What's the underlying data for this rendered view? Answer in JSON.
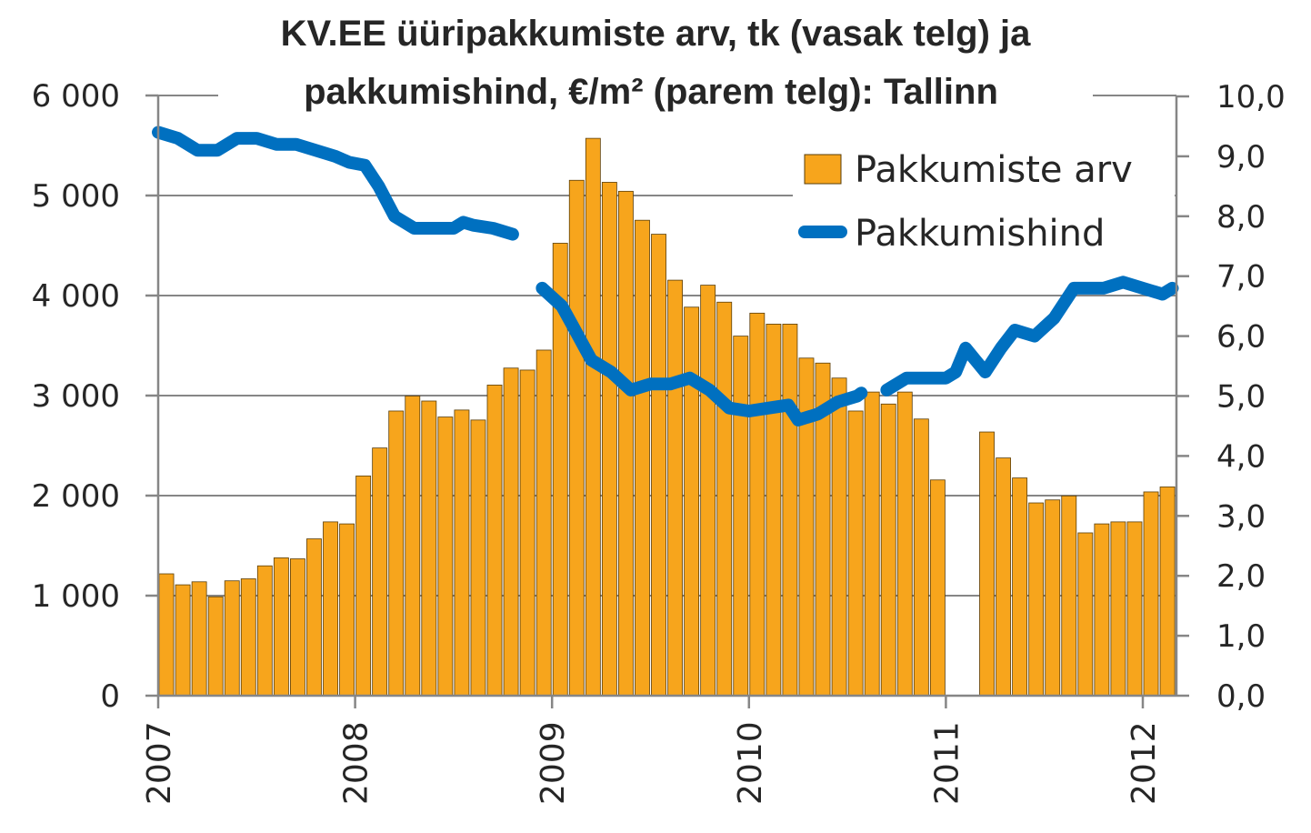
{
  "chart_data": {
    "type": "bar+line",
    "title_lines": [
      "KV.EE üüripakkumiste arv, tk (vasak telg) ja",
      "pakkumishind, €/m² (parem telg): Tallinn"
    ],
    "x_ticks": [
      "2007",
      "2008",
      "2009",
      "2010",
      "2011",
      "2012"
    ],
    "left_axis": {
      "min": 0,
      "max": 6000,
      "ticks": [
        "0",
        "1 000",
        "2 000",
        "3 000",
        "4 000",
        "5 000",
        "6 000"
      ]
    },
    "right_axis": {
      "min": 0,
      "max": 10,
      "ticks": [
        "0,0",
        "1,0",
        "2,0",
        "3,0",
        "4,0",
        "5,0",
        "6,0",
        "7,0",
        "8,0",
        "9,0",
        "10,0"
      ]
    },
    "legend": {
      "bar_label": "Pakkumiste arv",
      "line_label": "Pakkumishind"
    },
    "colors": {
      "bar": "#F7A51C",
      "line": "#0070C0",
      "grid": "#868686",
      "text": "#262626"
    },
    "series": [
      {
        "name": "Pakkumiste arv",
        "axis": "left",
        "type": "bar",
        "values": [
          1220,
          1110,
          1140,
          990,
          1150,
          1170,
          1300,
          1380,
          1370,
          1570,
          1740,
          1720,
          2200,
          2480,
          2850,
          3000,
          2950,
          2790,
          2860,
          2760,
          3110,
          3280,
          3260,
          3460,
          4530,
          5160,
          5580,
          5140,
          5050,
          4760,
          4620,
          4160,
          3890,
          4110,
          3940,
          3600,
          3830,
          3720,
          3720,
          3380,
          3330,
          3180,
          2850,
          3040,
          2920,
          3040,
          2770,
          2160,
          null,
          null,
          2640,
          2380,
          2180,
          1930,
          1960,
          2000,
          1630,
          1720,
          1740,
          1740,
          2040,
          2090
        ]
      },
      {
        "name": "Pakkumishind",
        "axis": "right",
        "type": "line",
        "segments": [
          [
            [
              2007.0,
              9.4
            ],
            [
              2007.1,
              9.3
            ],
            [
              2007.2,
              9.1
            ],
            [
              2007.3,
              9.1
            ],
            [
              2007.4,
              9.3
            ],
            [
              2007.5,
              9.3
            ],
            [
              2007.6,
              9.2
            ],
            [
              2007.7,
              9.2
            ],
            [
              2007.8,
              9.1
            ],
            [
              2007.9,
              9.0
            ],
            [
              2007.97,
              8.9
            ],
            [
              2008.05,
              8.85
            ],
            [
              2008.12,
              8.5
            ],
            [
              2008.2,
              8.0
            ],
            [
              2008.3,
              7.8
            ],
            [
              2008.4,
              7.8
            ],
            [
              2008.5,
              7.8
            ],
            [
              2008.55,
              7.9
            ],
            [
              2008.6,
              7.85
            ],
            [
              2008.7,
              7.8
            ],
            [
              2008.8,
              7.7
            ]
          ],
          [
            [
              2008.95,
              6.8
            ],
            [
              2009.05,
              6.5
            ],
            [
              2009.1,
              6.2
            ],
            [
              2009.2,
              5.6
            ],
            [
              2009.3,
              5.4
            ],
            [
              2009.4,
              5.1
            ],
            [
              2009.5,
              5.2
            ],
            [
              2009.6,
              5.2
            ],
            [
              2009.7,
              5.3
            ],
            [
              2009.8,
              5.1
            ],
            [
              2009.9,
              4.8
            ],
            [
              2010.0,
              4.75
            ],
            [
              2010.1,
              4.8
            ],
            [
              2010.2,
              4.85
            ],
            [
              2010.25,
              4.6
            ],
            [
              2010.35,
              4.7
            ],
            [
              2010.45,
              4.9
            ],
            [
              2010.55,
              5.0
            ],
            [
              2010.57,
              5.05
            ]
          ],
          [
            [
              2010.7,
              5.1
            ],
            [
              2010.8,
              5.3
            ],
            [
              2010.9,
              5.3
            ],
            [
              2011.0,
              5.3
            ],
            [
              2011.05,
              5.4
            ],
            [
              2011.1,
              5.8
            ],
            [
              2011.15,
              5.6
            ],
            [
              2011.2,
              5.4
            ],
            [
              2011.28,
              5.8
            ],
            [
              2011.35,
              6.1
            ],
            [
              2011.45,
              6.0
            ],
            [
              2011.55,
              6.3
            ],
            [
              2011.65,
              6.8
            ],
            [
              2011.75,
              6.8
            ],
            [
              2011.8,
              6.8
            ],
            [
              2011.9,
              6.9
            ],
            [
              2012.0,
              6.8
            ],
            [
              2012.1,
              6.7
            ],
            [
              2012.15,
              6.8
            ]
          ]
        ]
      }
    ]
  }
}
